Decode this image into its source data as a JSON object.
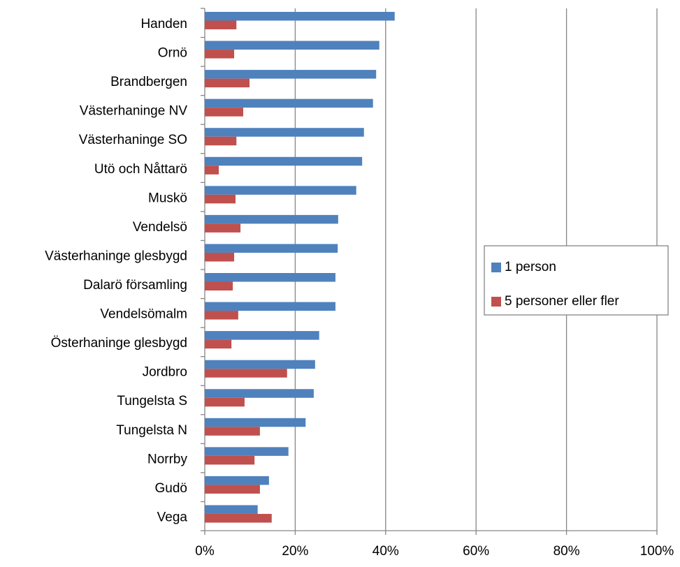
{
  "chart_data": {
    "type": "bar",
    "orientation": "horizontal",
    "categories": [
      "Handen",
      "Ornö",
      "Brandbergen",
      "Västerhaninge NV",
      "Västerhaninge SO",
      "Utö och Nåttarö",
      "Muskö",
      "Vendelsö",
      "Västerhaninge glesbygd",
      "Dalarö församling",
      "Vendelsömalm",
      "Österhaninge glesbygd",
      "Jordbro",
      "Tungelsta S",
      "Tungelsta N",
      "Norrby",
      "Gudö",
      "Vega"
    ],
    "series": [
      {
        "name": "1 person",
        "color": "#4f81bd",
        "values": [
          42.0,
          38.6,
          37.9,
          37.2,
          35.2,
          34.8,
          33.5,
          29.5,
          29.4,
          28.9,
          28.9,
          25.3,
          24.4,
          24.1,
          22.3,
          18.5,
          14.2,
          11.7
        ]
      },
      {
        "name": "5 personer eller fler",
        "color": "#c0504d",
        "values": [
          7.0,
          6.5,
          9.9,
          8.5,
          7.0,
          3.1,
          6.8,
          7.9,
          6.5,
          6.2,
          7.4,
          5.9,
          18.2,
          8.8,
          12.2,
          11.0,
          12.2,
          14.8
        ]
      }
    ],
    "xlim": [
      0,
      100
    ],
    "xticks": [
      {
        "value": 0,
        "label": "0%"
      },
      {
        "value": 20,
        "label": "20%"
      },
      {
        "value": 40,
        "label": "40%"
      },
      {
        "value": 60,
        "label": "60%"
      },
      {
        "value": 80,
        "label": "80%"
      },
      {
        "value": 100,
        "label": "100%"
      }
    ],
    "grid": true,
    "legend": "right"
  }
}
